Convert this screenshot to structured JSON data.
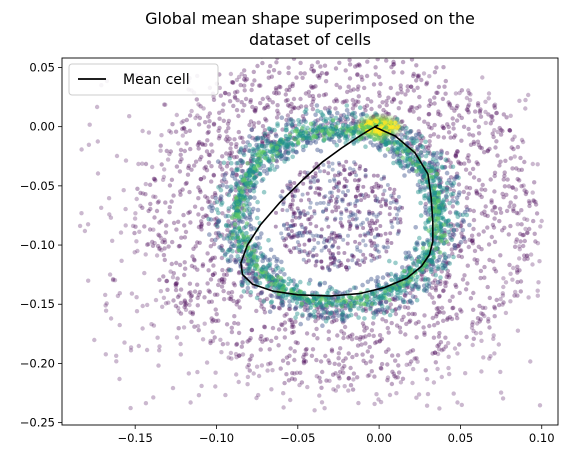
{
  "chart_data": {
    "type": "scatter",
    "title_lines": [
      "Global mean shape superimposed on the",
      "dataset of cells"
    ],
    "xlabel": "",
    "ylabel": "",
    "xlim": [
      -0.195,
      0.11
    ],
    "ylim": [
      -0.252,
      0.058
    ],
    "x_ticks": [
      -0.15,
      -0.1,
      -0.05,
      0.0,
      0.05,
      0.1
    ],
    "x_tick_labels": [
      "−0.15",
      "−0.10",
      "−0.05",
      "0.00",
      "0.05",
      "0.10"
    ],
    "y_ticks": [
      0.05,
      0.0,
      -0.05,
      -0.1,
      -0.15,
      -0.2,
      -0.25
    ],
    "y_tick_labels": [
      "0.05",
      "0.00",
      "−0.05",
      "−0.10",
      "−0.15",
      "−0.20",
      "−0.25"
    ],
    "grid": false,
    "legend": {
      "position": "top-left",
      "entries": [
        {
          "label": "Mean cell",
          "color": "#000000"
        }
      ]
    },
    "scatter_cloud": {
      "colormap": [
        "#440154",
        "#3b528b",
        "#21918c",
        "#5ec962",
        "#fde725"
      ],
      "center": [
        -0.025,
        -0.075
      ],
      "ring_width": [
        0.072,
        0.085
      ],
      "halo_width": [
        0.11,
        0.13
      ],
      "outlier_x_range": [
        -0.185,
        0.1
      ],
      "outlier_y_range": [
        -0.24,
        0.045
      ],
      "hot_spot": [
        0.0,
        0.0
      ]
    },
    "series": [
      {
        "name": "Mean cell",
        "color": "#000000",
        "x": [
          -0.003,
          0.01,
          0.022,
          0.03,
          0.032,
          0.033,
          0.033,
          0.031,
          0.026,
          0.017,
          0.003,
          -0.012,
          -0.03,
          -0.05,
          -0.065,
          -0.078,
          -0.084,
          -0.085,
          -0.081,
          -0.073,
          -0.061,
          -0.047,
          -0.035,
          -0.023,
          -0.012,
          -0.005,
          -0.001,
          -0.003
        ],
        "y": [
          0.0,
          -0.008,
          -0.022,
          -0.04,
          -0.06,
          -0.08,
          -0.097,
          -0.108,
          -0.118,
          -0.128,
          -0.136,
          -0.141,
          -0.143,
          -0.142,
          -0.139,
          -0.133,
          -0.125,
          -0.115,
          -0.1,
          -0.083,
          -0.064,
          -0.045,
          -0.03,
          -0.018,
          -0.008,
          -0.002,
          0.001,
          0.0
        ]
      }
    ]
  }
}
